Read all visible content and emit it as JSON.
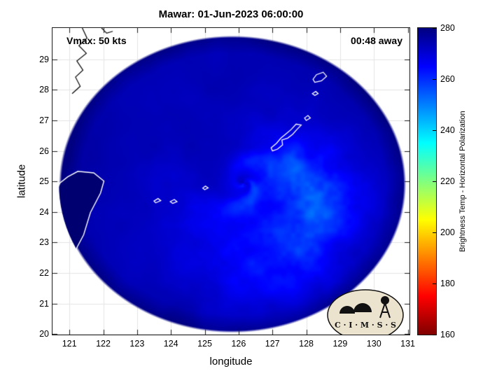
{
  "title": "Mawar: 01-Jun-2023 06:00:00",
  "annotations": {
    "vmax": "Vmax: 50 kts",
    "eta": "00:48 away"
  },
  "axes": {
    "xlabel": "longitude",
    "ylabel": "latitude",
    "x_ticks": [
      121,
      122,
      123,
      124,
      125,
      126,
      127,
      128,
      129,
      130,
      131
    ],
    "y_ticks": [
      20,
      21,
      22,
      23,
      24,
      25,
      26,
      27,
      28,
      29
    ],
    "x_range": [
      120.5,
      131.05
    ],
    "y_range": [
      19.98,
      30.03
    ]
  },
  "colorbar": {
    "label": "Brightness Temp - Horizontal Polarization",
    "ticks": [
      160,
      180,
      200,
      220,
      240,
      260,
      280
    ],
    "range": [
      160,
      280
    ],
    "colormap": "reversed-jet",
    "gradient_stops": [
      "#800000",
      "#ff0000",
      "#ff8000",
      "#ffff00",
      "#80ff80",
      "#00ffff",
      "#0080ff",
      "#0000ff",
      "#000080"
    ]
  },
  "logo": {
    "text": "C · I · M · S · S"
  },
  "chart_data": {
    "type": "heatmap",
    "title": "Mawar: 01-Jun-2023 06:00:00",
    "xlabel": "longitude",
    "ylabel": "latitude",
    "x_range": [
      120.5,
      131.05
    ],
    "y_range": [
      19.98,
      30.03
    ],
    "value_label": "Brightness Temp - Horizontal Polarization",
    "value_range_k": [
      160,
      280
    ],
    "storm": {
      "name": "Mawar",
      "time": "01-Jun-2023 06:00:00",
      "vmax_kts": 50,
      "eta": "00:48 away",
      "eye": [
        126.15,
        24.95
      ],
      "disk_center": [
        125.82,
        24.91
      ],
      "disk_radius_lon_deg": 5.13,
      "disk_radius_lat_deg": 4.87,
      "background_temp_k": 272,
      "band_temp_k": 235,
      "spiral_tightness": 1.45
    },
    "features": {
      "taiwan": {
        "fill": "#000070",
        "outline": "#ffffff",
        "points": [
          [
            120.55,
            24.45
          ],
          [
            120.72,
            24.95
          ],
          [
            120.95,
            25.15
          ],
          [
            121.25,
            25.33
          ],
          [
            121.72,
            25.28
          ],
          [
            122.02,
            25.01
          ],
          [
            121.92,
            24.62
          ],
          [
            121.62,
            23.98
          ],
          [
            121.42,
            23.25
          ],
          [
            121.12,
            22.62
          ],
          [
            120.85,
            22.32
          ],
          [
            120.62,
            22.42
          ],
          [
            120.5,
            22.9
          ]
        ]
      },
      "mainland_coast": {
        "color": "#000000",
        "points": [
          [
            121.38,
            30.03
          ],
          [
            121.52,
            29.7
          ],
          [
            121.28,
            29.45
          ],
          [
            121.5,
            29.2
          ],
          [
            121.22,
            28.95
          ],
          [
            121.4,
            28.65
          ],
          [
            121.18,
            28.42
          ],
          [
            121.32,
            28.12
          ],
          [
            121.08,
            27.88
          ]
        ]
      },
      "islet_coast": {
        "color": "#000000",
        "points": [
          [
            121.95,
            30.03
          ],
          [
            122.1,
            29.86
          ],
          [
            122.28,
            29.92
          ]
        ]
      },
      "islands": [
        {
          "name": "ishigaki",
          "points": [
            [
              123.55,
              24.3
            ],
            [
              123.7,
              24.37
            ],
            [
              123.62,
              24.44
            ],
            [
              123.5,
              24.36
            ]
          ]
        },
        {
          "name": "miyako",
          "points": [
            [
              124.05,
              24.28
            ],
            [
              124.18,
              24.34
            ],
            [
              124.1,
              24.41
            ],
            [
              123.98,
              24.34
            ]
          ]
        },
        {
          "name": "tarama",
          "points": [
            [
              125.0,
              24.73
            ],
            [
              125.1,
              24.79
            ],
            [
              125.02,
              24.85
            ],
            [
              124.94,
              24.78
            ]
          ]
        },
        {
          "name": "okinawa",
          "points": [
            [
              127.0,
              26.0
            ],
            [
              127.15,
              26.06
            ],
            [
              127.3,
              26.2
            ],
            [
              127.28,
              26.36
            ],
            [
              127.45,
              26.42
            ],
            [
              127.6,
              26.55
            ],
            [
              127.72,
              26.7
            ],
            [
              127.85,
              26.85
            ],
            [
              127.7,
              26.88
            ],
            [
              127.55,
              26.7
            ],
            [
              127.4,
              26.56
            ],
            [
              127.25,
              26.42
            ],
            [
              127.12,
              26.25
            ],
            [
              126.96,
              26.1
            ]
          ]
        },
        {
          "name": "yoron",
          "points": [
            [
              128.0,
              27.0
            ],
            [
              128.12,
              27.08
            ],
            [
              128.05,
              27.16
            ],
            [
              127.95,
              27.08
            ]
          ]
        },
        {
          "name": "amami",
          "points": [
            [
              128.25,
              28.25
            ],
            [
              128.45,
              28.3
            ],
            [
              128.6,
              28.45
            ],
            [
              128.5,
              28.58
            ],
            [
              128.3,
              28.5
            ],
            [
              128.2,
              28.35
            ]
          ]
        },
        {
          "name": "tokara",
          "points": [
            [
              128.25,
              27.82
            ],
            [
              128.35,
              27.88
            ],
            [
              128.28,
              27.95
            ],
            [
              128.18,
              27.88
            ]
          ]
        }
      ]
    }
  }
}
